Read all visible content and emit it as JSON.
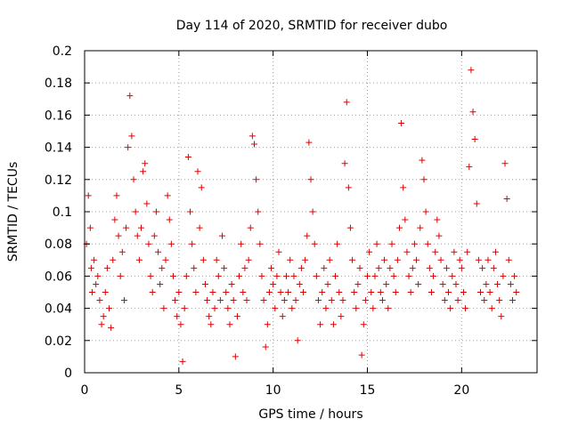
{
  "chart_data": {
    "type": "scatter",
    "title": "Day 114 of 2020, SRMTID for receiver dubo",
    "xlabel": "GPS time / hours",
    "ylabel": "SRMTID / TECUs",
    "xlim": [
      0,
      24
    ],
    "ylim": [
      0,
      0.2
    ],
    "grid": true,
    "marker": "+",
    "color": "#e00000",
    "x_ticks": [
      0,
      5,
      10,
      15,
      20
    ],
    "x_tick_labels": [
      "0",
      "5",
      "10",
      "15",
      "20"
    ],
    "y_ticks": [
      0,
      0.02,
      0.04,
      0.06,
      0.08,
      0.1,
      0.12,
      0.14,
      0.16,
      0.18,
      0.2
    ],
    "y_tick_labels": [
      "0",
      "0.02",
      "0.04",
      "0.06",
      "0.08",
      "0.1",
      "0.12",
      "0.14",
      "0.16",
      "0.18",
      "0.2"
    ],
    "series": [
      {
        "name": "SRMTID",
        "points": [
          [
            0.1,
            0.08
          ],
          [
            0.2,
            0.11
          ],
          [
            0.3,
            0.09
          ],
          [
            0.35,
            0.065
          ],
          [
            0.4,
            0.05
          ],
          [
            0.5,
            0.07
          ],
          [
            0.6,
            0.055
          ],
          [
            0.7,
            0.06
          ],
          [
            0.8,
            0.045
          ],
          [
            0.9,
            0.03
          ],
          [
            1.0,
            0.035
          ],
          [
            1.1,
            0.05
          ],
          [
            1.2,
            0.065
          ],
          [
            1.3,
            0.04
          ],
          [
            1.4,
            0.028
          ],
          [
            1.5,
            0.07
          ],
          [
            1.6,
            0.095
          ],
          [
            1.7,
            0.11
          ],
          [
            1.8,
            0.085
          ],
          [
            1.9,
            0.06
          ],
          [
            2.0,
            0.075
          ],
          [
            2.1,
            0.045
          ],
          [
            2.2,
            0.09
          ],
          [
            2.3,
            0.14
          ],
          [
            2.4,
            0.172
          ],
          [
            2.5,
            0.147
          ],
          [
            2.6,
            0.12
          ],
          [
            2.7,
            0.1
          ],
          [
            2.8,
            0.085
          ],
          [
            2.9,
            0.07
          ],
          [
            3.0,
            0.09
          ],
          [
            3.1,
            0.125
          ],
          [
            3.2,
            0.13
          ],
          [
            3.3,
            0.105
          ],
          [
            3.4,
            0.08
          ],
          [
            3.5,
            0.06
          ],
          [
            3.6,
            0.05
          ],
          [
            3.7,
            0.085
          ],
          [
            3.8,
            0.1
          ],
          [
            3.9,
            0.075
          ],
          [
            4.0,
            0.055
          ],
          [
            4.1,
            0.065
          ],
          [
            4.2,
            0.04
          ],
          [
            4.3,
            0.07
          ],
          [
            4.4,
            0.11
          ],
          [
            4.5,
            0.095
          ],
          [
            4.6,
            0.08
          ],
          [
            4.7,
            0.06
          ],
          [
            4.8,
            0.045
          ],
          [
            4.9,
            0.035
          ],
          [
            5.0,
            0.05
          ],
          [
            5.1,
            0.03
          ],
          [
            5.2,
            0.007
          ],
          [
            5.3,
            0.04
          ],
          [
            5.4,
            0.06
          ],
          [
            5.5,
            0.134
          ],
          [
            5.6,
            0.1
          ],
          [
            5.7,
            0.08
          ],
          [
            5.8,
            0.065
          ],
          [
            5.9,
            0.05
          ],
          [
            6.0,
            0.125
          ],
          [
            6.1,
            0.09
          ],
          [
            6.2,
            0.115
          ],
          [
            6.3,
            0.07
          ],
          [
            6.4,
            0.055
          ],
          [
            6.5,
            0.045
          ],
          [
            6.6,
            0.035
          ],
          [
            6.7,
            0.03
          ],
          [
            6.8,
            0.05
          ],
          [
            6.9,
            0.04
          ],
          [
            7.0,
            0.07
          ],
          [
            7.1,
            0.06
          ],
          [
            7.2,
            0.045
          ],
          [
            7.3,
            0.085
          ],
          [
            7.4,
            0.065
          ],
          [
            7.5,
            0.05
          ],
          [
            7.6,
            0.04
          ],
          [
            7.7,
            0.03
          ],
          [
            7.8,
            0.055
          ],
          [
            7.9,
            0.045
          ],
          [
            8.0,
            0.01
          ],
          [
            8.1,
            0.035
          ],
          [
            8.2,
            0.06
          ],
          [
            8.3,
            0.08
          ],
          [
            8.4,
            0.05
          ],
          [
            8.5,
            0.065
          ],
          [
            8.6,
            0.045
          ],
          [
            8.7,
            0.07
          ],
          [
            8.8,
            0.09
          ],
          [
            8.9,
            0.147
          ],
          [
            9.0,
            0.142
          ],
          [
            9.1,
            0.12
          ],
          [
            9.2,
            0.1
          ],
          [
            9.3,
            0.08
          ],
          [
            9.4,
            0.06
          ],
          [
            9.5,
            0.045
          ],
          [
            9.6,
            0.016
          ],
          [
            9.7,
            0.03
          ],
          [
            9.8,
            0.05
          ],
          [
            9.9,
            0.065
          ],
          [
            10.0,
            0.055
          ],
          [
            10.1,
            0.04
          ],
          [
            10.2,
            0.06
          ],
          [
            10.3,
            0.075
          ],
          [
            10.4,
            0.05
          ],
          [
            10.5,
            0.035
          ],
          [
            10.6,
            0.045
          ],
          [
            10.7,
            0.06
          ],
          [
            10.8,
            0.05
          ],
          [
            10.9,
            0.07
          ],
          [
            11.0,
            0.04
          ],
          [
            11.1,
            0.06
          ],
          [
            11.2,
            0.045
          ],
          [
            11.3,
            0.02
          ],
          [
            11.4,
            0.055
          ],
          [
            11.5,
            0.065
          ],
          [
            11.6,
            0.05
          ],
          [
            11.7,
            0.07
          ],
          [
            11.8,
            0.085
          ],
          [
            11.9,
            0.143
          ],
          [
            12.0,
            0.12
          ],
          [
            12.1,
            0.1
          ],
          [
            12.2,
            0.08
          ],
          [
            12.3,
            0.06
          ],
          [
            12.4,
            0.045
          ],
          [
            12.5,
            0.03
          ],
          [
            12.6,
            0.05
          ],
          [
            12.7,
            0.065
          ],
          [
            12.8,
            0.04
          ],
          [
            12.9,
            0.055
          ],
          [
            13.0,
            0.07
          ],
          [
            13.1,
            0.045
          ],
          [
            13.2,
            0.03
          ],
          [
            13.3,
            0.06
          ],
          [
            13.4,
            0.08
          ],
          [
            13.5,
            0.05
          ],
          [
            13.6,
            0.035
          ],
          [
            13.7,
            0.045
          ],
          [
            13.8,
            0.13
          ],
          [
            13.9,
            0.168
          ],
          [
            14.0,
            0.115
          ],
          [
            14.1,
            0.09
          ],
          [
            14.2,
            0.07
          ],
          [
            14.3,
            0.05
          ],
          [
            14.4,
            0.04
          ],
          [
            14.5,
            0.055
          ],
          [
            14.6,
            0.065
          ],
          [
            14.7,
            0.011
          ],
          [
            14.8,
            0.03
          ],
          [
            14.9,
            0.045
          ],
          [
            15.0,
            0.06
          ],
          [
            15.1,
            0.075
          ],
          [
            15.2,
            0.05
          ],
          [
            15.3,
            0.04
          ],
          [
            15.4,
            0.06
          ],
          [
            15.5,
            0.08
          ],
          [
            15.6,
            0.065
          ],
          [
            15.7,
            0.05
          ],
          [
            15.8,
            0.045
          ],
          [
            15.9,
            0.07
          ],
          [
            16.0,
            0.055
          ],
          [
            16.1,
            0.04
          ],
          [
            16.2,
            0.065
          ],
          [
            16.3,
            0.08
          ],
          [
            16.4,
            0.06
          ],
          [
            16.5,
            0.05
          ],
          [
            16.6,
            0.07
          ],
          [
            16.7,
            0.09
          ],
          [
            16.8,
            0.155
          ],
          [
            16.9,
            0.115
          ],
          [
            17.0,
            0.095
          ],
          [
            17.1,
            0.075
          ],
          [
            17.2,
            0.06
          ],
          [
            17.3,
            0.05
          ],
          [
            17.4,
            0.065
          ],
          [
            17.5,
            0.08
          ],
          [
            17.6,
            0.07
          ],
          [
            17.7,
            0.055
          ],
          [
            17.8,
            0.09
          ],
          [
            17.9,
            0.132
          ],
          [
            18.0,
            0.12
          ],
          [
            18.1,
            0.1
          ],
          [
            18.2,
            0.08
          ],
          [
            18.3,
            0.065
          ],
          [
            18.4,
            0.05
          ],
          [
            18.5,
            0.06
          ],
          [
            18.6,
            0.075
          ],
          [
            18.7,
            0.095
          ],
          [
            18.8,
            0.085
          ],
          [
            18.9,
            0.07
          ],
          [
            19.0,
            0.055
          ],
          [
            19.1,
            0.045
          ],
          [
            19.2,
            0.065
          ],
          [
            19.3,
            0.05
          ],
          [
            19.4,
            0.04
          ],
          [
            19.5,
            0.06
          ],
          [
            19.6,
            0.075
          ],
          [
            19.7,
            0.055
          ],
          [
            19.8,
            0.045
          ],
          [
            19.9,
            0.07
          ],
          [
            20.0,
            0.065
          ],
          [
            20.1,
            0.05
          ],
          [
            20.2,
            0.04
          ],
          [
            20.3,
            0.075
          ],
          [
            20.4,
            0.128
          ],
          [
            20.5,
            0.188
          ],
          [
            20.6,
            0.162
          ],
          [
            20.7,
            0.145
          ],
          [
            20.8,
            0.105
          ],
          [
            20.9,
            0.07
          ],
          [
            21.0,
            0.05
          ],
          [
            21.1,
            0.065
          ],
          [
            21.2,
            0.045
          ],
          [
            21.3,
            0.055
          ],
          [
            21.4,
            0.07
          ],
          [
            21.5,
            0.05
          ],
          [
            21.6,
            0.04
          ],
          [
            21.7,
            0.065
          ],
          [
            21.8,
            0.075
          ],
          [
            21.9,
            0.055
          ],
          [
            22.0,
            0.045
          ],
          [
            22.1,
            0.035
          ],
          [
            22.2,
            0.06
          ],
          [
            22.3,
            0.13
          ],
          [
            22.4,
            0.108
          ],
          [
            22.5,
            0.07
          ],
          [
            22.6,
            0.055
          ],
          [
            22.7,
            0.045
          ],
          [
            22.8,
            0.06
          ],
          [
            22.9,
            0.05
          ]
        ]
      }
    ]
  }
}
